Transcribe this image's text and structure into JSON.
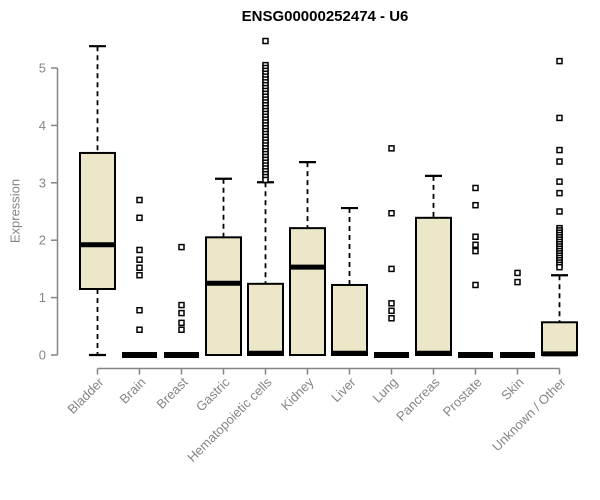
{
  "chart_data": {
    "type": "boxplot",
    "title": "ENSG00000252474 - U6",
    "ylabel": "Expression",
    "xlabel": "",
    "ylim": [
      0,
      5.5
    ],
    "yticks": [
      0,
      1,
      2,
      3,
      4,
      5
    ],
    "grid": false,
    "legend": "none",
    "box_fill": "#EDE7CA",
    "box_stroke": "#000000",
    "axis_color": "#858585",
    "categories": [
      {
        "label": "Bladder",
        "whisker_low": 0,
        "q1": 1.15,
        "median": 1.92,
        "q3": 3.52,
        "whisker_high": 5.38,
        "outliers": []
      },
      {
        "label": "Brain",
        "whisker_low": 0,
        "q1": 0,
        "median": 0,
        "q3": 0,
        "whisker_high": 0,
        "outliers": [
          2.7,
          2.39,
          1.83,
          1.66,
          1.52,
          1.39,
          0.78,
          0.44
        ]
      },
      {
        "label": "Breast",
        "whisker_low": 0,
        "q1": 0,
        "median": 0,
        "q3": 0,
        "whisker_high": 0,
        "outliers": [
          1.88,
          0.87,
          0.73,
          0.56,
          0.44
        ]
      },
      {
        "label": "Gastric",
        "whisker_low": 0,
        "q1": 0,
        "median": 1.25,
        "q3": 2.05,
        "whisker_high": 3.07,
        "outliers": []
      },
      {
        "label": "Hematopoietic cells",
        "whisker_low": 0,
        "q1": 0,
        "median": 0.03,
        "q3": 1.24,
        "whisker_high": 3.01,
        "outliers": [
          5.47,
          5.05,
          5.0,
          4.95,
          4.9,
          4.85,
          4.8,
          4.75,
          4.7,
          4.65,
          4.6,
          4.55,
          4.5,
          4.45,
          4.4,
          4.35,
          4.3,
          4.25,
          4.2,
          4.15,
          4.1,
          4.05,
          4.0,
          3.95,
          3.9,
          3.85,
          3.8,
          3.75,
          3.7,
          3.65,
          3.6,
          3.55,
          3.5,
          3.45,
          3.4,
          3.35,
          3.3,
          3.25,
          3.2,
          3.15,
          3.1,
          3.05
        ]
      },
      {
        "label": "Kidney",
        "whisker_low": 0,
        "q1": 0,
        "median": 1.53,
        "q3": 2.21,
        "whisker_high": 3.36,
        "outliers": []
      },
      {
        "label": "Liver",
        "whisker_low": 0,
        "q1": 0,
        "median": 0.03,
        "q3": 1.22,
        "whisker_high": 2.56,
        "outliers": []
      },
      {
        "label": "Lung",
        "whisker_low": 0,
        "q1": 0,
        "median": 0,
        "q3": 0,
        "whisker_high": 0,
        "outliers": [
          3.6,
          2.47,
          1.5,
          0.9,
          0.77,
          0.64
        ]
      },
      {
        "label": "Pancreas",
        "whisker_low": 0,
        "q1": 0,
        "median": 0.03,
        "q3": 2.39,
        "whisker_high": 3.12,
        "outliers": []
      },
      {
        "label": "Prostate",
        "whisker_low": 0,
        "q1": 0,
        "median": 0,
        "q3": 0,
        "whisker_high": 0,
        "outliers": [
          2.91,
          2.61,
          2.06,
          1.92,
          1.81,
          1.22
        ]
      },
      {
        "label": "Skin",
        "whisker_low": 0,
        "q1": 0,
        "median": 0,
        "q3": 0,
        "whisker_high": 0,
        "outliers": [
          1.43,
          1.27
        ]
      },
      {
        "label": "Unknown / Other",
        "whisker_low": 0,
        "q1": 0,
        "median": 0.02,
        "q3": 0.57,
        "whisker_high": 1.39,
        "outliers": [
          5.12,
          4.13,
          3.57,
          3.37,
          3.02,
          2.82,
          2.5,
          2.21,
          2.17,
          2.13,
          2.09,
          2.05,
          2.01,
          1.97,
          1.93,
          1.89,
          1.85,
          1.81,
          1.77,
          1.73,
          1.69,
          1.65,
          1.61,
          1.57,
          1.53
        ]
      }
    ]
  }
}
